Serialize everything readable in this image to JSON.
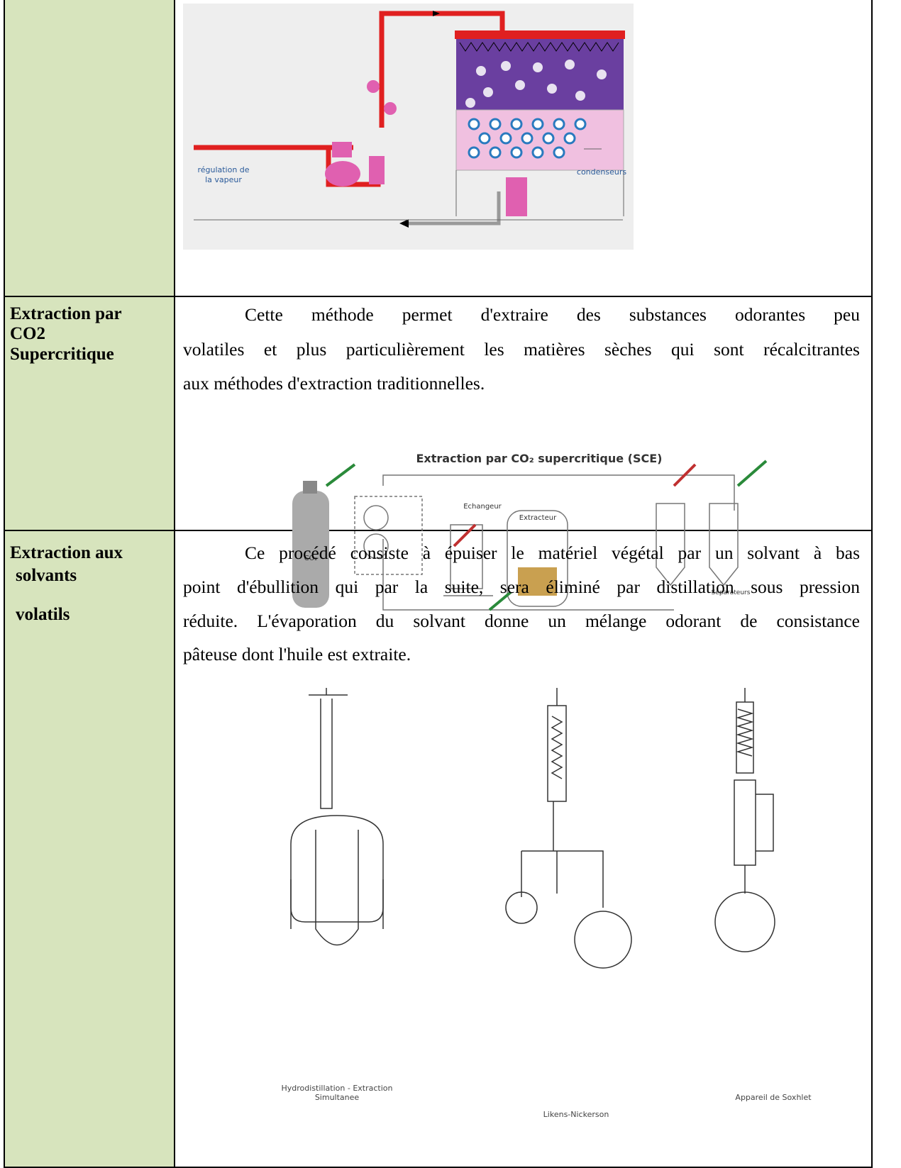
{
  "rows": [
    {
      "figure": {
        "labels": [
          "régulation de",
          "la vapeur",
          "condenseurs"
        ]
      }
    },
    {
      "label": [
        "Extraction par",
        "CO2",
        "Supercritique"
      ],
      "text": [
        "Cette méthode permet d'extraire des substances odorantes peu",
        "volatiles et plus particulièrement les matières sèches qui sont récalcitrantes",
        "aux méthodes d'extraction traditionnelles."
      ],
      "figure": {
        "title": "Extraction par CO₂ supercritique (SCE)",
        "labels": [
          "Echangeur",
          "Extracteur",
          "Séparateurs",
          "CO₂"
        ]
      }
    },
    {
      "label": [
        "Extraction aux",
        "solvants",
        "volatils"
      ],
      "text": [
        "Ce procédé consiste à épuiser le matériel végétal par un solvant à bas",
        "point d'ébullition qui par la suite, sera éliminé par distillation sous pression",
        "réduite. L'évaporation du solvant donne un mélange odorant de consistance",
        "pâteuse dont l'huile est extraite."
      ],
      "figure": {
        "captions": [
          "Hydrodistillation - Extraction",
          "Simultanee",
          "Likens-Nickerson",
          "Appareil de Soxhlet"
        ]
      }
    }
  ]
}
